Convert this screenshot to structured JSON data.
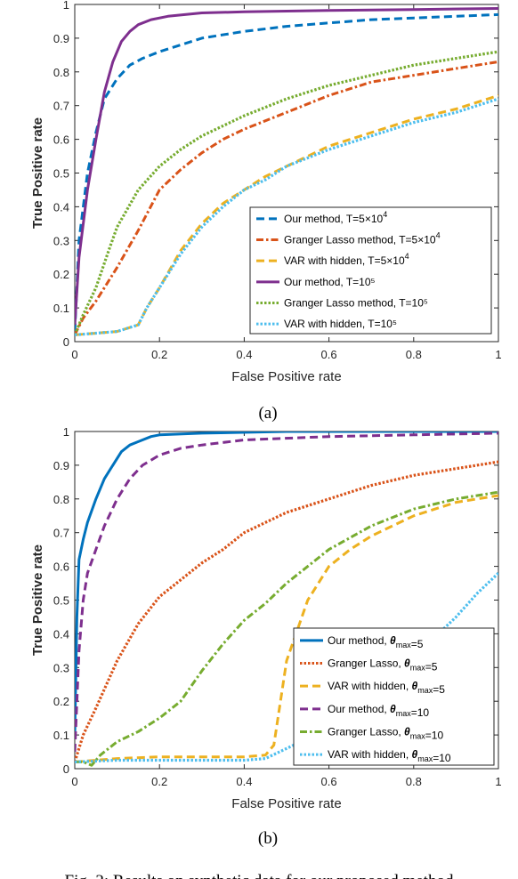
{
  "chart_data": [
    {
      "type": "line",
      "panel": "(a)",
      "xlabel": "False Positive rate",
      "ylabel": "True Positive rate",
      "xlim": [
        0,
        1
      ],
      "ylim": [
        0,
        1
      ],
      "xticks": [
        "0",
        "0.2",
        "0.4",
        "0.6",
        "0.8",
        "1"
      ],
      "yticks": [
        "0",
        "0.1",
        "0.2",
        "0.3",
        "0.4",
        "0.5",
        "0.6",
        "0.7",
        "0.8",
        "0.9",
        "1"
      ],
      "legend_position": "bottom-right",
      "series": [
        {
          "name": "Our method, T=5×10⁴",
          "color": "#0072BD",
          "dash": "dashed",
          "x": [
            0,
            0.01,
            0.03,
            0.05,
            0.07,
            0.1,
            0.13,
            0.16,
            0.2,
            0.25,
            0.3,
            0.4,
            0.5,
            0.6,
            0.7,
            0.8,
            0.9,
            1.0
          ],
          "y": [
            0.03,
            0.3,
            0.5,
            0.62,
            0.72,
            0.78,
            0.82,
            0.84,
            0.86,
            0.88,
            0.9,
            0.92,
            0.935,
            0.945,
            0.955,
            0.96,
            0.965,
            0.97
          ]
        },
        {
          "name": "Granger Lasso method, T=5×10⁴",
          "color": "#D95319",
          "dash": "dashdot",
          "x": [
            0,
            0.02,
            0.05,
            0.1,
            0.15,
            0.2,
            0.25,
            0.3,
            0.35,
            0.4,
            0.5,
            0.6,
            0.7,
            0.8,
            0.9,
            1.0
          ],
          "y": [
            0.02,
            0.07,
            0.12,
            0.22,
            0.33,
            0.45,
            0.51,
            0.56,
            0.6,
            0.63,
            0.68,
            0.73,
            0.77,
            0.79,
            0.81,
            0.83
          ]
        },
        {
          "name": "VAR with hidden, T=5×10⁴",
          "color": "#EDB120",
          "dash": "dashed",
          "x": [
            0,
            0.05,
            0.1,
            0.15,
            0.17,
            0.2,
            0.25,
            0.3,
            0.35,
            0.4,
            0.45,
            0.5,
            0.6,
            0.7,
            0.8,
            0.9,
            1.0
          ],
          "y": [
            0.02,
            0.025,
            0.03,
            0.05,
            0.1,
            0.16,
            0.27,
            0.35,
            0.41,
            0.45,
            0.49,
            0.52,
            0.58,
            0.62,
            0.66,
            0.69,
            0.73
          ]
        },
        {
          "name": "Our method, T=10⁵",
          "color": "#7E2F8E",
          "dash": "solid",
          "x": [
            0,
            0.01,
            0.03,
            0.05,
            0.07,
            0.09,
            0.11,
            0.13,
            0.15,
            0.18,
            0.22,
            0.3,
            0.4,
            0.6,
            0.8,
            1.0
          ],
          "y": [
            0.05,
            0.25,
            0.45,
            0.6,
            0.74,
            0.83,
            0.89,
            0.92,
            0.94,
            0.955,
            0.965,
            0.975,
            0.978,
            0.982,
            0.985,
            0.988
          ]
        },
        {
          "name": "Granger Lasso method, T=10⁵",
          "color": "#77AC30",
          "dash": "dotted",
          "x": [
            0,
            0.02,
            0.05,
            0.08,
            0.1,
            0.15,
            0.2,
            0.25,
            0.3,
            0.4,
            0.5,
            0.6,
            0.7,
            0.8,
            0.9,
            1.0
          ],
          "y": [
            0.02,
            0.08,
            0.16,
            0.27,
            0.34,
            0.45,
            0.52,
            0.57,
            0.61,
            0.67,
            0.72,
            0.76,
            0.79,
            0.82,
            0.84,
            0.86
          ]
        },
        {
          "name": "VAR with hidden, T=10⁵",
          "color": "#4DBEEE",
          "dash": "dotted",
          "x": [
            0,
            0.05,
            0.1,
            0.15,
            0.17,
            0.2,
            0.25,
            0.3,
            0.35,
            0.4,
            0.45,
            0.5,
            0.6,
            0.7,
            0.8,
            0.9,
            1.0
          ],
          "y": [
            0.02,
            0.025,
            0.03,
            0.05,
            0.1,
            0.16,
            0.26,
            0.34,
            0.4,
            0.45,
            0.48,
            0.52,
            0.57,
            0.61,
            0.65,
            0.68,
            0.72
          ]
        }
      ]
    },
    {
      "type": "line",
      "panel": "(b)",
      "xlabel": "False Positive rate",
      "ylabel": "True Positive rate",
      "xlim": [
        0,
        1
      ],
      "ylim": [
        0,
        1
      ],
      "xticks": [
        "0",
        "0.2",
        "0.4",
        "0.6",
        "0.8",
        "1"
      ],
      "yticks": [
        "0",
        "0.1",
        "0.2",
        "0.3",
        "0.4",
        "0.5",
        "0.6",
        "0.7",
        "0.8",
        "0.9",
        "1"
      ],
      "legend_position": "bottom-right",
      "series": [
        {
          "name": "Our method, θmax=5",
          "color": "#0072BD",
          "dash": "solid",
          "x": [
            0,
            0.005,
            0.01,
            0.02,
            0.03,
            0.05,
            0.07,
            0.09,
            0.11,
            0.13,
            0.15,
            0.18,
            0.2,
            0.3,
            0.5,
            1.0
          ],
          "y": [
            0.1,
            0.45,
            0.62,
            0.68,
            0.73,
            0.8,
            0.86,
            0.9,
            0.94,
            0.96,
            0.97,
            0.985,
            0.99,
            0.995,
            1.0,
            1.0
          ]
        },
        {
          "name": "Granger Lasso, θmax=5",
          "color": "#D95319",
          "dash": "dotted",
          "x": [
            0,
            0.02,
            0.05,
            0.1,
            0.15,
            0.2,
            0.25,
            0.3,
            0.35,
            0.4,
            0.45,
            0.5,
            0.6,
            0.7,
            0.8,
            0.9,
            1.0
          ],
          "y": [
            0.02,
            0.1,
            0.18,
            0.32,
            0.43,
            0.51,
            0.56,
            0.61,
            0.65,
            0.7,
            0.73,
            0.76,
            0.8,
            0.84,
            0.87,
            0.89,
            0.91
          ]
        },
        {
          "name": "VAR with hidden, θmax=5",
          "color": "#EDB120",
          "dash": "dashed",
          "x": [
            0,
            0.1,
            0.2,
            0.3,
            0.4,
            0.45,
            0.47,
            0.5,
            0.55,
            0.6,
            0.65,
            0.7,
            0.75,
            0.8,
            0.85,
            0.9,
            0.95,
            1.0
          ],
          "y": [
            0.02,
            0.03,
            0.035,
            0.035,
            0.035,
            0.04,
            0.07,
            0.32,
            0.5,
            0.6,
            0.65,
            0.69,
            0.72,
            0.75,
            0.77,
            0.79,
            0.8,
            0.81
          ]
        },
        {
          "name": "Our method, θmax=10",
          "color": "#7E2F8E",
          "dash": "dashed",
          "x": [
            0,
            0.01,
            0.02,
            0.03,
            0.05,
            0.07,
            0.1,
            0.13,
            0.16,
            0.2,
            0.25,
            0.3,
            0.4,
            0.6,
            0.8,
            1.0
          ],
          "y": [
            0.05,
            0.35,
            0.5,
            0.58,
            0.65,
            0.72,
            0.8,
            0.86,
            0.9,
            0.93,
            0.95,
            0.96,
            0.975,
            0.985,
            0.99,
            0.995
          ]
        },
        {
          "name": "Granger Lasso, θmax=10",
          "color": "#77AC30",
          "dash": "dashdot",
          "x": [
            0,
            0.02,
            0.04,
            0.06,
            0.1,
            0.15,
            0.2,
            0.25,
            0.3,
            0.35,
            0.4,
            0.45,
            0.5,
            0.6,
            0.7,
            0.8,
            0.9,
            1.0
          ],
          "y": [
            0.02,
            0.02,
            0.01,
            0.04,
            0.08,
            0.11,
            0.15,
            0.2,
            0.29,
            0.37,
            0.44,
            0.49,
            0.55,
            0.65,
            0.72,
            0.77,
            0.8,
            0.82
          ]
        },
        {
          "name": "VAR with hidden, θmax=10",
          "color": "#4DBEEE",
          "dash": "dotted",
          "x": [
            0,
            0.1,
            0.2,
            0.3,
            0.4,
            0.45,
            0.5,
            0.55,
            0.6,
            0.65,
            0.7,
            0.75,
            0.8,
            0.85,
            0.9,
            0.95,
            1.0
          ],
          "y": [
            0.02,
            0.025,
            0.025,
            0.025,
            0.025,
            0.03,
            0.06,
            0.09,
            0.13,
            0.18,
            0.23,
            0.28,
            0.33,
            0.39,
            0.45,
            0.52,
            0.58
          ]
        }
      ]
    }
  ],
  "captions": [
    "(a)",
    "(b)"
  ],
  "bottom_text": "Fig. 2: Results on synthetic data for our proposed method"
}
